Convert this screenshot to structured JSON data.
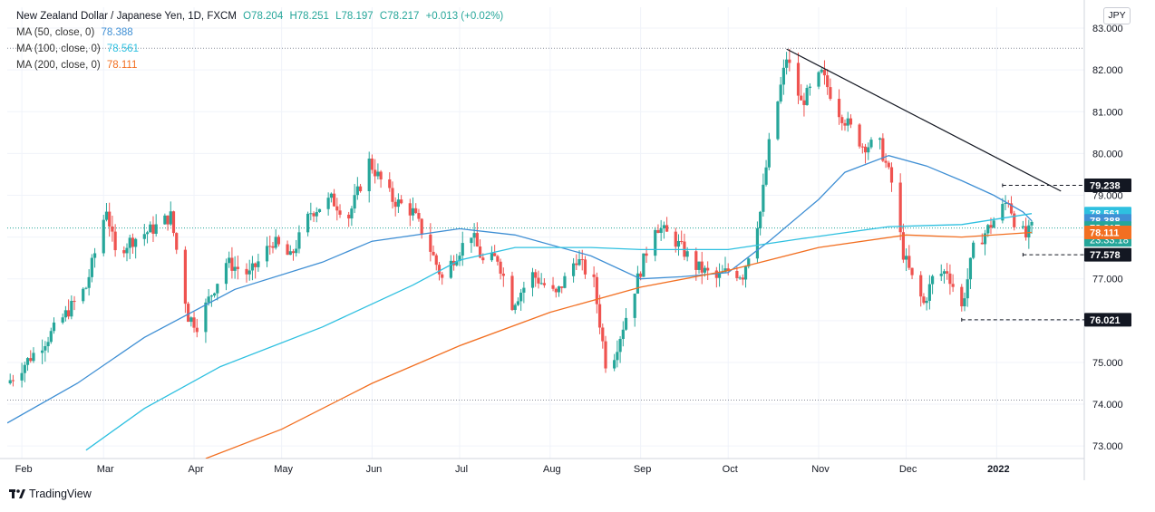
{
  "legend": {
    "title": "New Zealand Dollar / Japanese Yen, 1D, FXCM",
    "open": "O78.204",
    "high": "H78.251",
    "low": "L78.197",
    "close": "C78.217",
    "change": "+0.013 (+0.02%)",
    "ma50_label": "MA (50, close, 0)",
    "ma50_value": "78.388",
    "ma100_label": "MA (100, close, 0)",
    "ma100_value": "78.561",
    "ma200_label": "MA (200, close, 0)",
    "ma200_value": "78.111"
  },
  "currency_badge": "JPY",
  "branding": "TradingView",
  "colors": {
    "up": "#26a69a",
    "down": "#ef5350",
    "ma50": "#3f8fd4",
    "ma100": "#2ec0e0",
    "ma200": "#f26f21",
    "price_label": "#26a69a"
  },
  "chart_data": {
    "type": "candlestick",
    "y_range": [
      72.7,
      83.5
    ],
    "x_range": [
      "2021-01-27",
      "2022-01-31"
    ],
    "y_ticks": [
      "73.000",
      "74.000",
      "75.000",
      "76.000",
      "77.000",
      "78.000",
      "79.000",
      "80.000",
      "81.000",
      "82.000",
      "83.000"
    ],
    "x_ticks": [
      {
        "date": "2021-02-01",
        "label": "Feb"
      },
      {
        "date": "2021-03-01",
        "label": "Mar"
      },
      {
        "date": "2021-04-01",
        "label": "Apr"
      },
      {
        "date": "2021-05-01",
        "label": "May"
      },
      {
        "date": "2021-06-01",
        "label": "Jun"
      },
      {
        "date": "2021-07-01",
        "label": "Jul"
      },
      {
        "date": "2021-08-01",
        "label": "Aug"
      },
      {
        "date": "2021-09-01",
        "label": "Sep"
      },
      {
        "date": "2021-10-01",
        "label": "Oct"
      },
      {
        "date": "2021-11-01",
        "label": "Nov"
      },
      {
        "date": "2021-12-01",
        "label": "Dec"
      },
      {
        "date": "2022-01-01",
        "label": "2022"
      }
    ],
    "price_anchors": [
      [
        "2021-01-27",
        74.5
      ],
      [
        "2021-02-10",
        75.6
      ],
      [
        "2021-02-23",
        76.8
      ],
      [
        "2021-03-02",
        78.7
      ],
      [
        "2021-03-05",
        77.6
      ],
      [
        "2021-03-10",
        77.9
      ],
      [
        "2021-03-18",
        78.2
      ],
      [
        "2021-03-24",
        78.5
      ],
      [
        "2021-03-30",
        76.1
      ],
      [
        "2021-04-02",
        75.9
      ],
      [
        "2021-04-12",
        77.4
      ],
      [
        "2021-04-20",
        77.1
      ],
      [
        "2021-04-28",
        77.9
      ],
      [
        "2021-05-04",
        77.5
      ],
      [
        "2021-05-11",
        78.6
      ],
      [
        "2021-05-18",
        78.9
      ],
      [
        "2021-05-24",
        78.5
      ],
      [
        "2021-05-31",
        79.8
      ],
      [
        "2021-06-08",
        78.9
      ],
      [
        "2021-06-15",
        78.6
      ],
      [
        "2021-06-21",
        77.7
      ],
      [
        "2021-06-25",
        77.0
      ],
      [
        "2021-06-29",
        77.5
      ],
      [
        "2021-07-05",
        78.1
      ],
      [
        "2021-07-09",
        77.4
      ],
      [
        "2021-07-14",
        77.5
      ],
      [
        "2021-07-19",
        76.4
      ],
      [
        "2021-07-26",
        77.1
      ],
      [
        "2021-08-03",
        76.6
      ],
      [
        "2021-08-10",
        77.5
      ],
      [
        "2021-08-16",
        76.9
      ],
      [
        "2021-08-20",
        75.0
      ],
      [
        "2021-08-23",
        75.2
      ],
      [
        "2021-08-31",
        77.0
      ],
      [
        "2021-09-06",
        78.3
      ],
      [
        "2021-09-13",
        77.9
      ],
      [
        "2021-09-20",
        77.3
      ],
      [
        "2021-09-27",
        77.0
      ],
      [
        "2021-10-01",
        77.2
      ],
      [
        "2021-10-06",
        77.1
      ],
      [
        "2021-10-12",
        78.6
      ],
      [
        "2021-10-15",
        80.2
      ],
      [
        "2021-10-21",
        82.3
      ],
      [
        "2021-10-26",
        81.2
      ],
      [
        "2021-11-02",
        81.9
      ],
      [
        "2021-11-08",
        81.0
      ],
      [
        "2021-11-16",
        80.2
      ],
      [
        "2021-11-22",
        80.2
      ],
      [
        "2021-11-26",
        79.3
      ],
      [
        "2021-11-30",
        77.6
      ],
      [
        "2021-12-03",
        77.0
      ],
      [
        "2021-12-07",
        76.4
      ],
      [
        "2021-12-10",
        77.0
      ],
      [
        "2021-12-15",
        77.2
      ],
      [
        "2021-12-20",
        76.3
      ],
      [
        "2021-12-24",
        77.7
      ],
      [
        "2021-12-31",
        78.4
      ],
      [
        "2022-01-05",
        78.9
      ],
      [
        "2022-01-07",
        78.4
      ],
      [
        "2022-01-11",
        78.0
      ],
      [
        "2022-01-13",
        78.217
      ]
    ],
    "series": [
      {
        "name": "MA (50, close, 0)",
        "points": [
          [
            "2021-01-27",
            73.55
          ],
          [
            "2021-02-20",
            74.5
          ],
          [
            "2021-03-15",
            75.6
          ],
          [
            "2021-04-15",
            76.75
          ],
          [
            "2021-05-15",
            77.4
          ],
          [
            "2021-06-01",
            77.9
          ],
          [
            "2021-07-01",
            78.2
          ],
          [
            "2021-07-20",
            78.05
          ],
          [
            "2021-08-15",
            77.55
          ],
          [
            "2021-09-01",
            77.0
          ],
          [
            "2021-09-15",
            77.05
          ],
          [
            "2021-10-01",
            77.15
          ],
          [
            "2021-10-15",
            77.9
          ],
          [
            "2021-11-01",
            78.9
          ],
          [
            "2021-11-10",
            79.55
          ],
          [
            "2021-11-25",
            79.95
          ],
          [
            "2021-12-08",
            79.7
          ],
          [
            "2021-12-20",
            79.35
          ],
          [
            "2021-12-31",
            79.0
          ],
          [
            "2022-01-10",
            78.6
          ],
          [
            "2022-01-13",
            78.388
          ]
        ]
      },
      {
        "name": "MA (100, close, 0)",
        "points": [
          [
            "2021-02-23",
            72.9
          ],
          [
            "2021-03-15",
            73.9
          ],
          [
            "2021-04-10",
            74.9
          ],
          [
            "2021-05-15",
            75.85
          ],
          [
            "2021-06-15",
            76.85
          ],
          [
            "2021-07-01",
            77.45
          ],
          [
            "2021-07-20",
            77.75
          ],
          [
            "2021-08-15",
            77.75
          ],
          [
            "2021-09-01",
            77.7
          ],
          [
            "2021-10-01",
            77.7
          ],
          [
            "2021-10-25",
            77.95
          ],
          [
            "2021-11-25",
            78.25
          ],
          [
            "2021-12-20",
            78.3
          ],
          [
            "2022-01-13",
            78.561
          ]
        ]
      },
      {
        "name": "MA (200, close, 0)",
        "points": [
          [
            "2021-04-05",
            72.7
          ],
          [
            "2021-05-01",
            73.4
          ],
          [
            "2021-06-01",
            74.5
          ],
          [
            "2021-07-01",
            75.4
          ],
          [
            "2021-08-01",
            76.2
          ],
          [
            "2021-09-01",
            76.8
          ],
          [
            "2021-10-01",
            77.2
          ],
          [
            "2021-11-01",
            77.75
          ],
          [
            "2021-12-01",
            78.05
          ],
          [
            "2021-12-20",
            78.0
          ],
          [
            "2022-01-13",
            78.111
          ]
        ]
      }
    ],
    "trendline": {
      "start": [
        "2021-10-21",
        82.5
      ],
      "end": [
        "2022-01-23",
        79.1
      ]
    },
    "reference_line": 82.52,
    "lower_reference_line": 74.1,
    "current_price_line": 78.217,
    "price_labels": [
      {
        "value": 79.238,
        "text": "79.238",
        "color": "#131722",
        "dashed_from": "2022-01-03"
      },
      {
        "value": 78.561,
        "text": "78.561",
        "color": "#2ec0e0"
      },
      {
        "value": 78.388,
        "text": "78.388",
        "color": "#3f8fd4"
      },
      {
        "value": 78.217,
        "text": "78.217",
        "sub": "23:33:18",
        "color": "#26a69a"
      },
      {
        "value": 78.111,
        "text": "78.111",
        "color": "#f26f21"
      },
      {
        "value": 77.578,
        "text": "77.578",
        "color": "#131722",
        "dashed_from": "2022-01-10"
      },
      {
        "value": 76.021,
        "text": "76.021",
        "color": "#131722",
        "dashed_from": "2021-12-20"
      }
    ]
  }
}
